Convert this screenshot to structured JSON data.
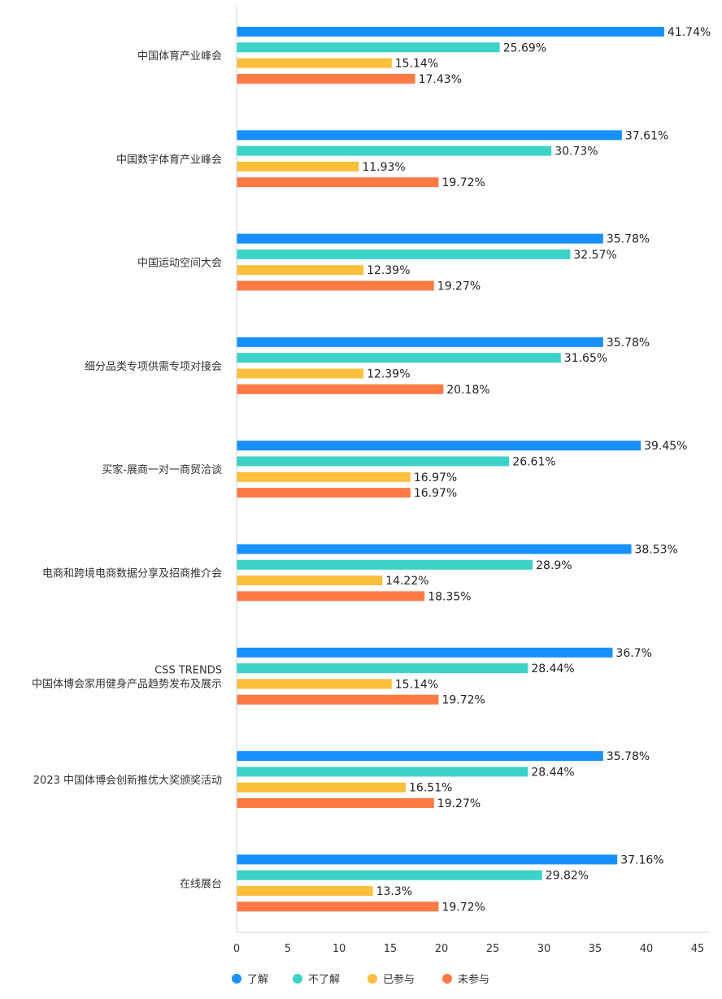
{
  "chart_data": {
    "type": "bar",
    "orientation": "horizontal",
    "categories": [
      [
        "中国体育产业峰会"
      ],
      [
        "中国数字体育产业峰会"
      ],
      [
        "中国运动空间大会"
      ],
      [
        "细分品类专项供需专项对接会"
      ],
      [
        "买家-展商一对一商贸洽谈"
      ],
      [
        "电商和跨境电商数据分享及招商推介会"
      ],
      [
        "CSS TRENDS",
        "中国体博会家用健身产品趋势发布及展示"
      ],
      [
        "2023 中国体博会创新推优大奖颁奖活动"
      ],
      [
        "在线展台"
      ]
    ],
    "series": [
      {
        "name": "了解",
        "color": "#1890ff",
        "values": [
          41.74,
          37.61,
          35.78,
          35.78,
          39.45,
          38.53,
          36.7,
          35.78,
          37.16
        ]
      },
      {
        "name": "不了解",
        "color": "#3cd2c8",
        "values": [
          25.69,
          30.73,
          32.57,
          31.65,
          26.61,
          28.9,
          28.44,
          28.44,
          29.82
        ]
      },
      {
        "name": "已参与",
        "color": "#fbbf3c",
        "values": [
          15.14,
          11.93,
          12.39,
          12.39,
          16.97,
          14.22,
          15.14,
          16.51,
          13.3
        ]
      },
      {
        "name": "未参与",
        "color": "#ff7a45",
        "values": [
          17.43,
          19.72,
          19.27,
          20.18,
          16.97,
          18.35,
          19.72,
          19.27,
          19.72
        ]
      }
    ],
    "value_suffix": "%",
    "xlim": [
      0,
      45
    ],
    "xticks": [
      "0",
      "5",
      "10",
      "15",
      "20",
      "25",
      "30",
      "35",
      "40",
      "45"
    ],
    "legend_position": "bottom-left",
    "grid": false
  }
}
